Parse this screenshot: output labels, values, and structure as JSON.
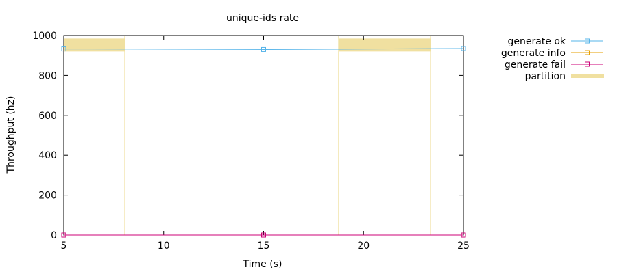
{
  "chart_data": {
    "type": "line",
    "title": "unique-ids rate",
    "xlabel": "Time (s)",
    "ylabel": "Throughput (hz)",
    "xlim": [
      5,
      25
    ],
    "ylim": [
      0,
      1000
    ],
    "xticks": [
      "5",
      "10",
      "15",
      "20",
      "25"
    ],
    "yticks": [
      "0",
      "200",
      "400",
      "600",
      "800",
      "1000"
    ],
    "grid": false,
    "legend_position": "outside-right",
    "series": [
      {
        "name": "generate ok",
        "color": "#56b4e9",
        "marker": "square",
        "x": [
          5,
          15,
          25
        ],
        "y": [
          933,
          930,
          935
        ]
      },
      {
        "name": "generate info",
        "color": "#e69f00",
        "marker": "square",
        "x": [
          5,
          15,
          25
        ],
        "y": [
          0,
          0,
          0
        ]
      },
      {
        "name": "generate fail",
        "color": "#cc0077",
        "marker": "square",
        "x": [
          5,
          15,
          25
        ],
        "y": [
          0,
          0,
          0
        ]
      }
    ],
    "partition": {
      "name": "partition",
      "color": "#f0e0a0",
      "intervals": [
        [
          5,
          8.05
        ],
        [
          18.75,
          23.35
        ]
      ],
      "band_y": [
        920,
        985
      ]
    }
  }
}
